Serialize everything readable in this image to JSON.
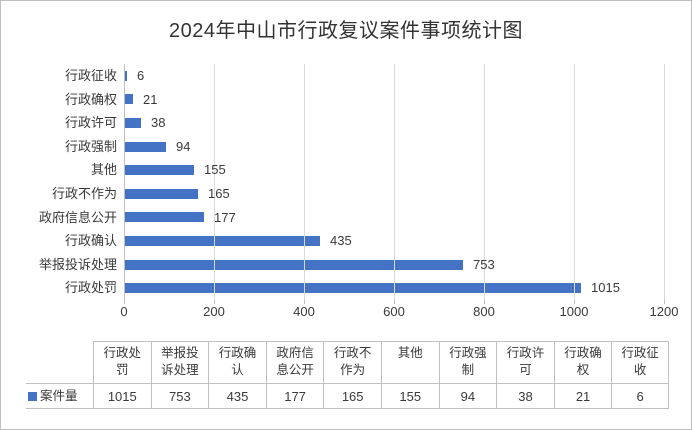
{
  "title": "2024年中山市行政复议案件事项统计图",
  "chart_data": {
    "type": "bar",
    "orientation": "horizontal",
    "title": "2024年中山市行政复议案件事项统计图",
    "series_name": "案件量",
    "categories_top_to_bottom": [
      "行政征收",
      "行政确权",
      "行政许可",
      "行政强制",
      "其他",
      "行政不作为",
      "政府信息公开",
      "行政确认",
      "举报投诉处理",
      "行政处罚"
    ],
    "values_top_to_bottom": [
      6,
      21,
      38,
      94,
      155,
      165,
      177,
      435,
      753,
      1015
    ],
    "xlim": [
      0,
      1200
    ],
    "x_ticks": [
      0,
      200,
      400,
      600,
      800,
      1000,
      1200
    ],
    "grid": true,
    "data_labels": true,
    "legend_position": "table-row-header"
  },
  "data_table": {
    "row_header": "案件量",
    "columns": [
      "行政处罚",
      "举报投诉处理",
      "行政确认",
      "政府信息公开",
      "行政不作为",
      "其他",
      "行政强制",
      "行政许可",
      "行政确权",
      "行政征收"
    ],
    "values": [
      1015,
      753,
      435,
      177,
      165,
      155,
      94,
      38,
      21,
      6
    ]
  },
  "colors": {
    "bar": "#4472c4",
    "legend_key": "#4472c4",
    "gridline": "#d9d9d9",
    "axis_line": "#bfbfbf",
    "table_border": "#c0c0c0",
    "text": "#3a3a3a",
    "frame_border": "#bfbfbf",
    "background": "#ffffff"
  }
}
